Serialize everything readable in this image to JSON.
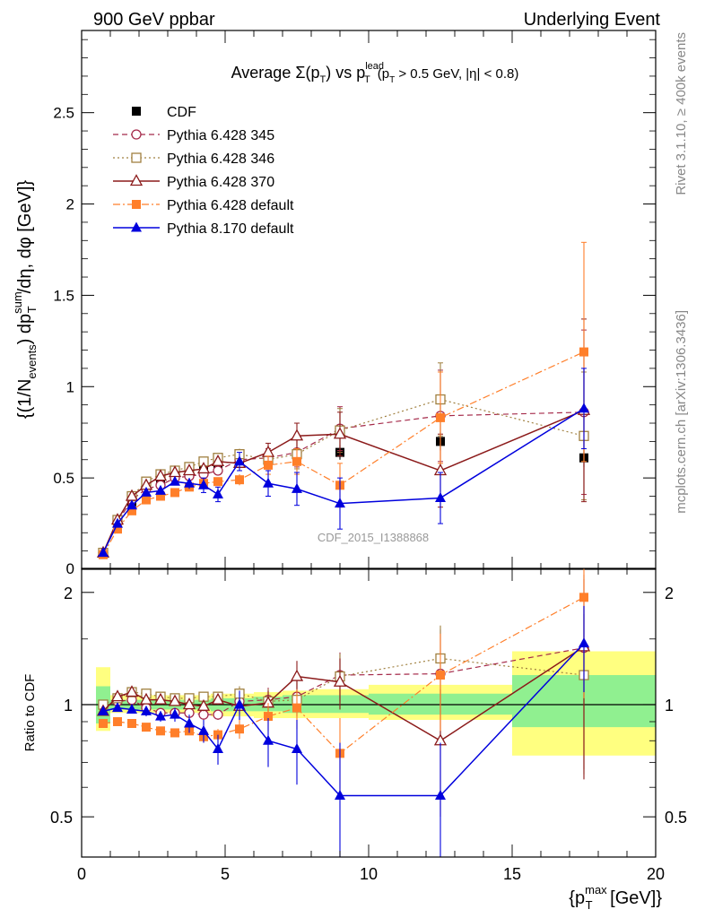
{
  "header": {
    "left": "900 GeV ppbar",
    "right": "Underlying Event",
    "side_top": "Rivet 3.1.10, ≥ 400k events",
    "side_bottom": "mcplots.cern.ch [arXiv:1306.3436]",
    "watermark": "CDF_2015_I1388868"
  },
  "chart_data": [
    {
      "type": "line",
      "title": "Average Σ(p_T) vs p_T^lead (p_T > 0.5 GeV, |η| < 0.8)",
      "ylabel": "{(1/N_events) dp_T^sum/dη, dφ [GeV]}",
      "xlim": [
        0,
        20
      ],
      "ylim": [
        0,
        2.95
      ],
      "yticks": [
        0.5,
        1,
        1.5,
        2,
        2.5
      ],
      "ytick_labels": [
        "0.5",
        "1",
        "1.5",
        "2",
        "2.5"
      ],
      "legend_position": "top-left",
      "x": [
        0.75,
        1.25,
        1.75,
        2.25,
        2.75,
        3.25,
        3.75,
        4.25,
        4.75,
        5.5,
        6.5,
        7.5,
        9.0,
        12.5,
        17.5
      ],
      "series": [
        {
          "name": "CDF",
          "color": "#000000",
          "values": [
            0.09,
            0.26,
            0.37,
            0.45,
            0.49,
            0.52,
            0.54,
            0.56,
            0.58,
            0.59,
            0.59,
            0.61,
            0.64,
            0.7,
            0.61
          ],
          "errors": [
            0.01,
            0.01,
            0.01,
            0.01,
            0.01,
            0.01,
            0.01,
            0.01,
            0.02,
            0.02,
            0.03,
            0.03,
            0.04,
            0.05,
            0.05
          ]
        },
        {
          "name": "Pythia 6.428 345",
          "color": "#a52a4a",
          "values": [
            0.09,
            0.26,
            0.38,
            0.44,
            0.46,
            0.5,
            0.51,
            0.52,
            0.54,
            0.6,
            0.61,
            0.64,
            0.77,
            0.84,
            0.86
          ],
          "errors": [
            0.01,
            0.01,
            0.01,
            0.01,
            0.01,
            0.01,
            0.01,
            0.02,
            0.02,
            0.03,
            0.05,
            0.08,
            0.12,
            0.25,
            0.45
          ]
        },
        {
          "name": "Pythia 6.428 346",
          "color": "#a08040",
          "values": [
            0.09,
            0.27,
            0.4,
            0.48,
            0.52,
            0.54,
            0.56,
            0.59,
            0.61,
            0.63,
            0.6,
            0.63,
            0.76,
            0.93,
            0.73
          ],
          "errors": [
            0.01,
            0.01,
            0.01,
            0.01,
            0.01,
            0.01,
            0.01,
            0.02,
            0.02,
            0.03,
            0.05,
            0.08,
            0.12,
            0.2,
            0.35
          ]
        },
        {
          "name": "Pythia 6.428 370",
          "color": "#8b1a1a",
          "values": [
            0.09,
            0.27,
            0.4,
            0.46,
            0.51,
            0.53,
            0.54,
            0.55,
            0.59,
            0.58,
            0.64,
            0.73,
            0.74,
            0.54,
            0.87
          ],
          "errors": [
            0.01,
            0.01,
            0.01,
            0.01,
            0.01,
            0.01,
            0.01,
            0.02,
            0.02,
            0.03,
            0.05,
            0.07,
            0.12,
            0.2,
            0.5
          ]
        },
        {
          "name": "Pythia 6.428 default",
          "color": "#ff7f2a",
          "values": [
            0.08,
            0.22,
            0.32,
            0.38,
            0.4,
            0.42,
            0.45,
            0.47,
            0.48,
            0.49,
            0.57,
            0.59,
            0.46,
            0.83,
            1.19
          ],
          "errors": [
            0.01,
            0.01,
            0.01,
            0.01,
            0.01,
            0.01,
            0.01,
            0.02,
            0.02,
            0.03,
            0.05,
            0.07,
            0.12,
            0.25,
            0.6
          ]
        },
        {
          "name": "Pythia 8.170 default",
          "color": "#0000dd",
          "values": [
            0.09,
            0.25,
            0.35,
            0.42,
            0.43,
            0.48,
            0.47,
            0.46,
            0.41,
            0.59,
            0.47,
            0.44,
            0.36,
            0.39,
            0.88
          ],
          "errors": [
            0.01,
            0.01,
            0.01,
            0.02,
            0.02,
            0.02,
            0.03,
            0.04,
            0.04,
            0.05,
            0.07,
            0.09,
            0.14,
            0.14,
            0.22
          ]
        }
      ]
    },
    {
      "type": "line",
      "ylabel": "Ratio to CDF",
      "xlabel": "{p_T^max [GeV]}",
      "xlim": [
        0,
        20
      ],
      "ylim": [
        0.39,
        2.32
      ],
      "log_y": true,
      "xticks": [
        0,
        5,
        10,
        15,
        20
      ],
      "xtick_labels": [
        "0",
        "5",
        "10",
        "15",
        "20"
      ],
      "yticks": [
        0.5,
        1,
        2
      ],
      "ytick_labels": [
        "0.5",
        "1",
        "2"
      ],
      "uncertainty_bands": [
        {
          "x0": 0.5,
          "x1": 1.0,
          "inner": [
            0.89,
            1.12
          ],
          "outer": [
            0.85,
            1.26
          ]
        },
        {
          "x0": 1.0,
          "x1": 4.5,
          "inner": [
            0.97,
            1.03
          ],
          "outer": [
            0.95,
            1.06
          ]
        },
        {
          "x0": 4.5,
          "x1": 5.0,
          "inner": [
            0.96,
            1.04
          ],
          "outer": [
            0.93,
            1.07
          ]
        },
        {
          "x0": 5.0,
          "x1": 6.0,
          "inner": [
            0.96,
            1.04
          ],
          "outer": [
            0.93,
            1.07
          ]
        },
        {
          "x0": 6.0,
          "x1": 7.0,
          "inner": [
            0.96,
            1.05
          ],
          "outer": [
            0.92,
            1.08
          ]
        },
        {
          "x0": 7.0,
          "x1": 8.0,
          "inner": [
            0.95,
            1.06
          ],
          "outer": [
            0.92,
            1.09
          ]
        },
        {
          "x0": 8.0,
          "x1": 10.0,
          "inner": [
            0.95,
            1.06
          ],
          "outer": [
            0.92,
            1.1
          ]
        },
        {
          "x0": 10.0,
          "x1": 15.0,
          "inner": [
            0.94,
            1.07
          ],
          "outer": [
            0.91,
            1.13
          ]
        },
        {
          "x0": 15.0,
          "x1": 20.0,
          "inner": [
            0.87,
            1.2
          ],
          "outer": [
            0.73,
            1.39
          ]
        }
      ],
      "x": [
        0.75,
        1.25,
        1.75,
        2.25,
        2.75,
        3.25,
        3.75,
        4.25,
        4.75,
        5.5,
        6.5,
        7.5,
        9.0,
        12.5,
        17.5
      ],
      "series": [
        {
          "name": "Pythia 6.428 345",
          "color": "#a52a4a",
          "values": [
            0.99,
            1.02,
            1.03,
            0.98,
            0.95,
            0.95,
            0.95,
            0.94,
            0.94,
            1.02,
            1.03,
            1.05,
            1.2,
            1.21,
            1.42
          ],
          "errors": [
            0.02,
            0.02,
            0.02,
            0.02,
            0.02,
            0.02,
            0.02,
            0.03,
            0.03,
            0.05,
            0.08,
            0.12,
            0.18,
            0.38,
            0.75
          ]
        },
        {
          "name": "Pythia 6.428 346",
          "color": "#a08040",
          "values": [
            1.0,
            1.04,
            1.08,
            1.07,
            1.05,
            1.04,
            1.04,
            1.05,
            1.05,
            1.07,
            1.02,
            1.03,
            1.19,
            1.33,
            1.2
          ],
          "errors": [
            0.02,
            0.02,
            0.02,
            0.02,
            0.02,
            0.02,
            0.02,
            0.03,
            0.03,
            0.05,
            0.08,
            0.12,
            0.18,
            0.3,
            0.55
          ]
        },
        {
          "name": "Pythia 6.428 370",
          "color": "#8b1a1a",
          "values": [
            0.96,
            1.05,
            1.08,
            1.03,
            1.03,
            1.02,
            1.0,
            0.99,
            1.03,
            0.99,
            1.01,
            1.19,
            1.15,
            0.8,
            1.43
          ],
          "errors": [
            0.02,
            0.02,
            0.02,
            0.02,
            0.02,
            0.02,
            0.02,
            0.03,
            0.03,
            0.05,
            0.08,
            0.12,
            0.18,
            0.3,
            0.8
          ]
        },
        {
          "name": "Pythia 6.428 default",
          "color": "#ff7f2a",
          "values": [
            0.89,
            0.9,
            0.89,
            0.87,
            0.85,
            0.84,
            0.85,
            0.82,
            0.83,
            0.86,
            0.93,
            0.98,
            0.74,
            1.2,
            1.94
          ],
          "errors": [
            0.02,
            0.02,
            0.02,
            0.02,
            0.02,
            0.02,
            0.02,
            0.03,
            0.03,
            0.05,
            0.08,
            0.12,
            0.18,
            0.35,
            0.9
          ]
        },
        {
          "name": "Pythia 8.170 default",
          "color": "#0000dd",
          "values": [
            0.96,
            0.98,
            0.97,
            0.96,
            0.93,
            0.94,
            0.89,
            0.85,
            0.76,
            1.0,
            0.8,
            0.76,
            0.57,
            0.57,
            1.46
          ],
          "errors": [
            0.02,
            0.02,
            0.02,
            0.03,
            0.03,
            0.04,
            0.05,
            0.06,
            0.07,
            0.09,
            0.12,
            0.15,
            0.22,
            0.22,
            0.38
          ]
        }
      ]
    }
  ]
}
